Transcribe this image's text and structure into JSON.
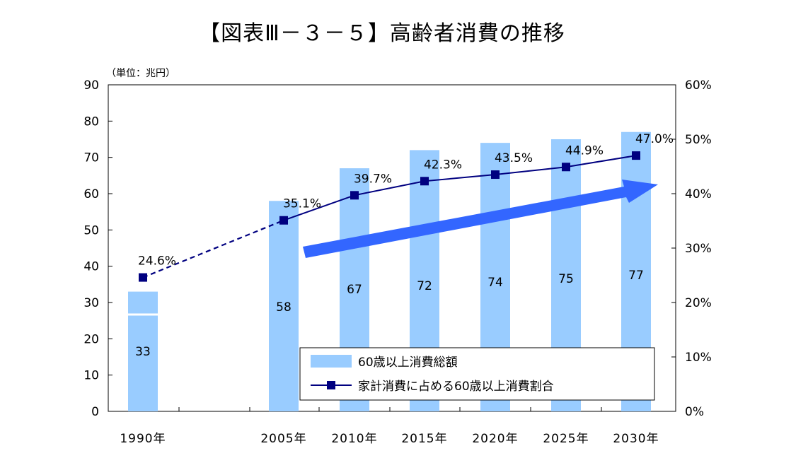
{
  "title": "【図表Ⅲ－３－５】高齢者消費の推移",
  "chart_data": {
    "type": "bar",
    "unit_label": "（単位：兆円）",
    "categories": [
      "1990年",
      "2005年",
      "2010年",
      "2015年",
      "2020年",
      "2025年",
      "2030年"
    ],
    "series": [
      {
        "name": "60歳以上消費総額",
        "type": "bar",
        "axis": "left",
        "values": [
          33,
          58,
          67,
          72,
          74,
          75,
          77
        ],
        "labels": [
          "33",
          "58",
          "67",
          "72",
          "74",
          "75",
          "77"
        ]
      },
      {
        "name": "家計消費に占める60歳以上消費割合",
        "type": "line",
        "axis": "right",
        "values": [
          24.6,
          35.1,
          39.7,
          42.3,
          43.5,
          44.9,
          47.0
        ],
        "labels": [
          "24.6%",
          "35.1%",
          "39.7%",
          "42.3%",
          "43.5%",
          "44.9%",
          "47.0%"
        ],
        "dashed_first_segment": true
      }
    ],
    "y_left": {
      "min": 0,
      "max": 90,
      "ticks": [
        "0",
        "10",
        "20",
        "30",
        "40",
        "50",
        "60",
        "70",
        "80",
        "90"
      ]
    },
    "y_right": {
      "min": 0,
      "max": 60,
      "ticks": [
        "0%",
        "10%",
        "20%",
        "30%",
        "40%",
        "50%",
        "60%"
      ]
    },
    "axis_break_after": "1990年",
    "trend_arrow": true,
    "grid": false,
    "legend_position": "bottom-right-inside",
    "colors": {
      "bar": "#99ccff",
      "line": "#000080",
      "arrow": "#3366ff"
    }
  }
}
